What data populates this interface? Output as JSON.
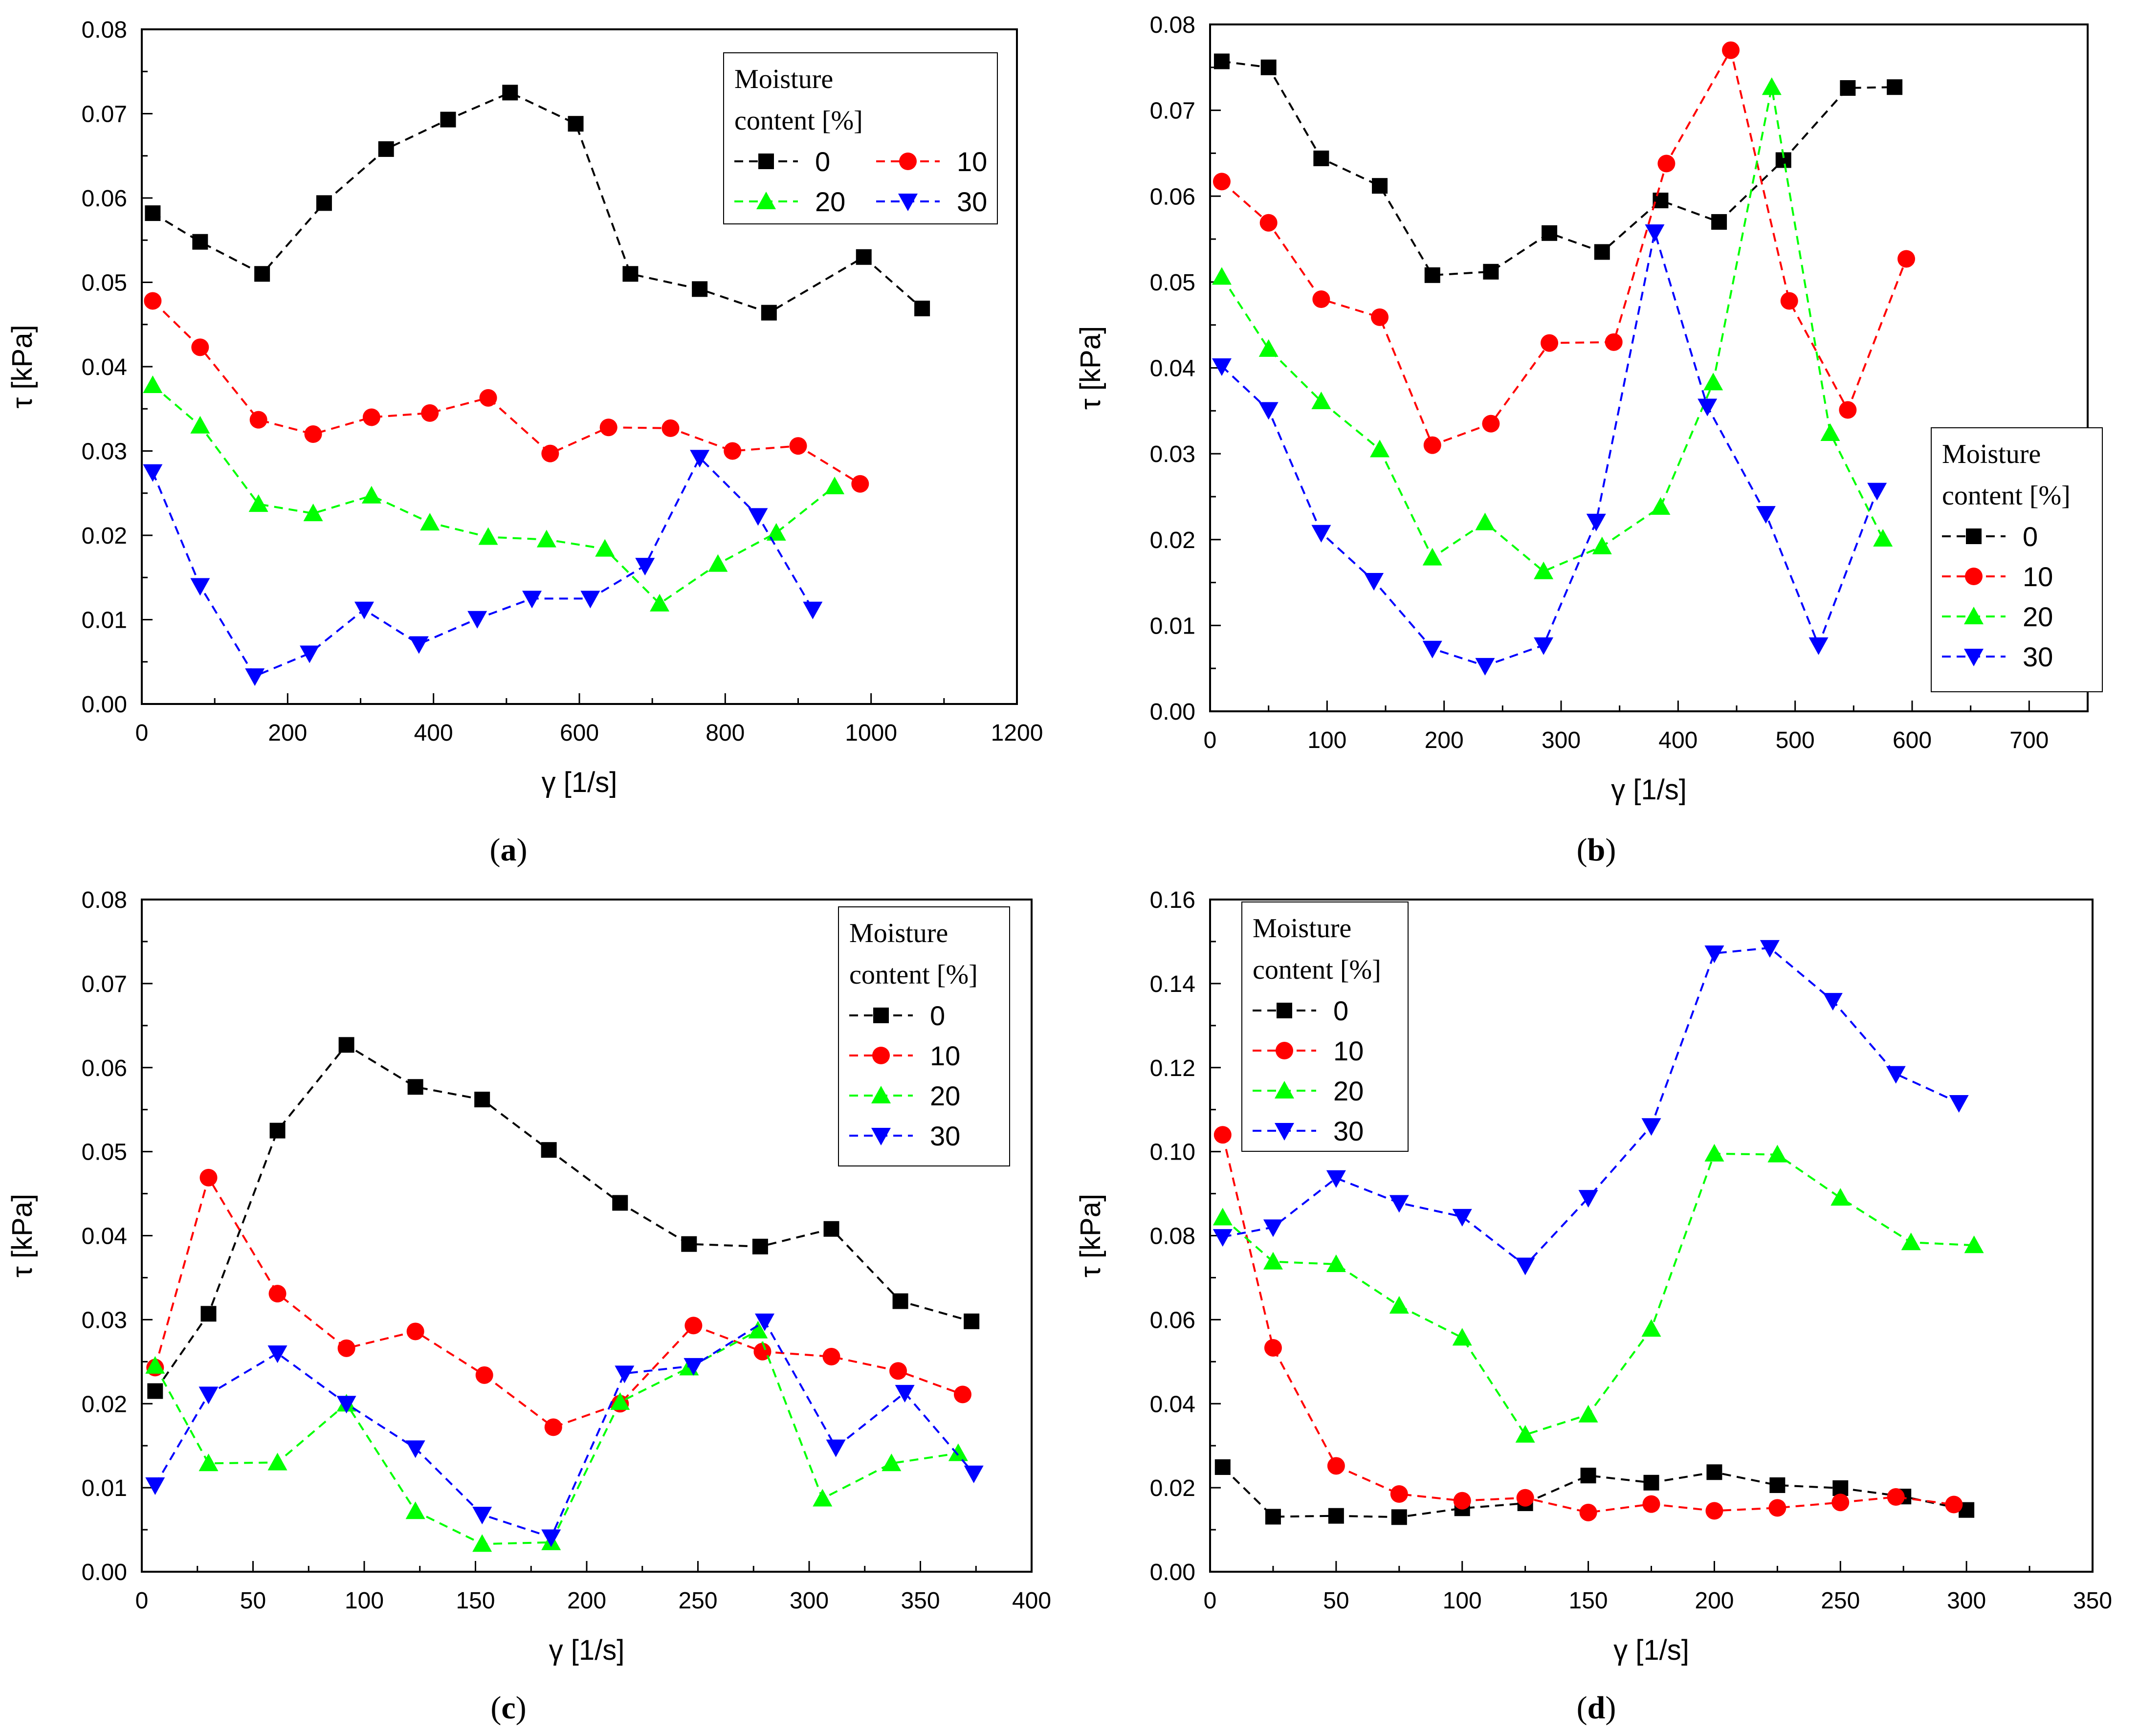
{
  "figure_caption_labels": [
    "a",
    "b",
    "c",
    "d"
  ],
  "chart_data": [
    {
      "type": "line",
      "panel": "a",
      "xlabel": "γ [1/s]",
      "ylabel": "τ [kPa]",
      "xlim": [
        0,
        1200
      ],
      "ylim": [
        0,
        0.08
      ],
      "xticks": [
        0,
        200,
        400,
        600,
        800,
        1000,
        1200
      ],
      "yticks": [
        0.0,
        0.01,
        0.02,
        0.03,
        0.04,
        0.05,
        0.06,
        0.07,
        0.08
      ],
      "legend_title": [
        "Moisture",
        "content [%]"
      ],
      "legend_position": "top-right",
      "legend_columns": 2,
      "series": [
        {
          "name": "0",
          "color": "#000000",
          "marker": "square",
          "x": [
            15,
            80,
            165,
            250,
            335,
            420,
            505,
            595,
            670,
            765,
            860,
            990,
            1070
          ],
          "y": [
            0.0582,
            0.0548,
            0.051,
            0.0594,
            0.0658,
            0.0693,
            0.0725,
            0.0688,
            0.051,
            0.0492,
            0.0464,
            0.053,
            0.0469
          ]
        },
        {
          "name": "10",
          "color": "#ff0000",
          "marker": "circle",
          "x": [
            15,
            80,
            160,
            235,
            315,
            395,
            475,
            560,
            640,
            725,
            810,
            900,
            985
          ],
          "y": [
            0.0478,
            0.0423,
            0.0337,
            0.032,
            0.034,
            0.0345,
            0.0363,
            0.0297,
            0.0328,
            0.0327,
            0.03,
            0.0306,
            0.0261
          ]
        },
        {
          "name": "20",
          "color": "#00ff00",
          "marker": "triangle-up",
          "x": [
            15,
            80,
            160,
            235,
            315,
            395,
            475,
            555,
            635,
            710,
            790,
            870,
            950
          ],
          "y": [
            0.0378,
            0.033,
            0.0237,
            0.0226,
            0.0247,
            0.0215,
            0.0198,
            0.0195,
            0.0184,
            0.0119,
            0.0166,
            0.0203,
            0.0258
          ]
        },
        {
          "name": "30",
          "color": "#0000ff",
          "marker": "triangle-down",
          "x": [
            15,
            80,
            155,
            230,
            305,
            380,
            460,
            535,
            615,
            690,
            765,
            845,
            920
          ],
          "y": [
            0.0275,
            0.014,
            0.0033,
            0.006,
            0.0112,
            0.0071,
            0.0101,
            0.0125,
            0.0125,
            0.0164,
            0.0292,
            0.0223,
            0.0112
          ]
        }
      ]
    },
    {
      "type": "line",
      "panel": "b",
      "xlabel": "γ [1/s]",
      "ylabel": "τ [kPa]",
      "xlim": [
        0,
        750
      ],
      "ylim": [
        0,
        0.08
      ],
      "xticks": [
        0,
        100,
        200,
        300,
        400,
        500,
        600,
        700
      ],
      "yticks": [
        0.0,
        0.01,
        0.02,
        0.03,
        0.04,
        0.05,
        0.06,
        0.07,
        0.08
      ],
      "legend_title": [
        "Moisture",
        "content [%]"
      ],
      "legend_position": "lower-right",
      "legend_columns": 1,
      "series": [
        {
          "name": "0",
          "color": "#000000",
          "marker": "square",
          "x": [
            10,
            50,
            95,
            145,
            190,
            240,
            290,
            335,
            385,
            435,
            490,
            545,
            585
          ],
          "y": [
            0.0757,
            0.075,
            0.0644,
            0.0612,
            0.0508,
            0.0512,
            0.0557,
            0.0535,
            0.0595,
            0.057,
            0.0642,
            0.0726,
            0.0727
          ]
        },
        {
          "name": "10",
          "color": "#ff0000",
          "marker": "circle",
          "x": [
            10,
            50,
            95,
            145,
            190,
            240,
            290,
            345,
            390,
            445,
            495,
            545,
            595
          ],
          "y": [
            0.0617,
            0.0569,
            0.048,
            0.0459,
            0.031,
            0.0335,
            0.0429,
            0.043,
            0.0638,
            0.077,
            0.0478,
            0.0351,
            0.0527
          ]
        },
        {
          "name": "20",
          "color": "#00ff00",
          "marker": "triangle-up",
          "x": [
            10,
            50,
            95,
            145,
            190,
            235,
            285,
            335,
            385,
            430,
            480,
            530,
            575
          ],
          "y": [
            0.0506,
            0.0422,
            0.0361,
            0.0305,
            0.0179,
            0.022,
            0.0163,
            0.0192,
            0.0238,
            0.0383,
            0.0727,
            0.0324,
            0.0201
          ]
        },
        {
          "name": "30",
          "color": "#0000ff",
          "marker": "triangle-down",
          "x": [
            10,
            50,
            95,
            140,
            190,
            235,
            285,
            330,
            380,
            425,
            475,
            520,
            570
          ],
          "y": [
            0.0402,
            0.0351,
            0.0208,
            0.0152,
            0.0073,
            0.0053,
            0.0077,
            0.0221,
            0.0558,
            0.0355,
            0.023,
            0.0077,
            0.0257
          ]
        }
      ]
    },
    {
      "type": "line",
      "panel": "c",
      "xlabel": "γ [1/s]",
      "ylabel": "τ [kPa]",
      "xlim": [
        0,
        400
      ],
      "ylim": [
        0,
        0.08
      ],
      "xticks": [
        0,
        50,
        100,
        150,
        200,
        250,
        300,
        350,
        400
      ],
      "yticks": [
        0.0,
        0.01,
        0.02,
        0.03,
        0.04,
        0.05,
        0.06,
        0.07,
        0.08
      ],
      "legend_title": [
        "Moisture",
        "content [%]"
      ],
      "legend_position": "top-right",
      "legend_columns": 1,
      "series": [
        {
          "name": "0",
          "color": "#000000",
          "marker": "square",
          "x": [
            6,
            30,
            61,
            92,
            123,
            153,
            183,
            215,
            246,
            278,
            310,
            341,
            373
          ],
          "y": [
            0.0215,
            0.0307,
            0.0525,
            0.0627,
            0.0577,
            0.0562,
            0.0502,
            0.0439,
            0.039,
            0.0387,
            0.0408,
            0.0322,
            0.0298
          ]
        },
        {
          "name": "10",
          "color": "#ff0000",
          "marker": "circle",
          "x": [
            6,
            30,
            61,
            92,
            123,
            154,
            185,
            215,
            248,
            279,
            310,
            340,
            369
          ],
          "y": [
            0.0243,
            0.0469,
            0.0331,
            0.0266,
            0.0286,
            0.0234,
            0.0172,
            0.02,
            0.0293,
            0.0262,
            0.0256,
            0.0239,
            0.0211
          ]
        },
        {
          "name": "20",
          "color": "#00ff00",
          "marker": "triangle-up",
          "x": [
            6,
            30,
            61,
            92,
            123,
            153,
            184,
            215,
            246,
            277,
            306,
            337,
            367
          ],
          "y": [
            0.0245,
            0.0129,
            0.013,
            0.02,
            0.0072,
            0.0033,
            0.0035,
            0.0202,
            0.0243,
            0.0287,
            0.0087,
            0.0129,
            0.0141
          ]
        },
        {
          "name": "30",
          "color": "#0000ff",
          "marker": "triangle-down",
          "x": [
            6,
            30,
            61,
            92,
            123,
            153,
            184,
            217,
            248,
            280,
            312,
            343,
            374
          ],
          "y": [
            0.0103,
            0.0211,
            0.026,
            0.02,
            0.0147,
            0.0068,
            0.0041,
            0.0236,
            0.0245,
            0.0298,
            0.0148,
            0.0213,
            0.0117
          ]
        }
      ]
    },
    {
      "type": "line",
      "panel": "d",
      "xlabel": "γ [1/s]",
      "ylabel": "τ [kPa]",
      "xlim": [
        0,
        350
      ],
      "ylim": [
        0,
        0.16
      ],
      "xticks": [
        0,
        50,
        100,
        150,
        200,
        250,
        300,
        350
      ],
      "yticks": [
        0.0,
        0.02,
        0.04,
        0.06,
        0.08,
        0.1,
        0.12,
        0.14,
        0.16
      ],
      "legend_title": [
        "Moisture",
        "content [%]"
      ],
      "legend_position": "top-left",
      "legend_columns": 1,
      "series": [
        {
          "name": "0",
          "color": "#000000",
          "marker": "square",
          "x": [
            5,
            25,
            50,
            75,
            100,
            125,
            150,
            175,
            200,
            225,
            250,
            275,
            300
          ],
          "y": [
            0.0249,
            0.0131,
            0.0133,
            0.013,
            0.0151,
            0.0163,
            0.0229,
            0.0212,
            0.0237,
            0.0206,
            0.0199,
            0.0179,
            0.0147
          ]
        },
        {
          "name": "10",
          "color": "#ff0000",
          "marker": "circle",
          "x": [
            5,
            25,
            50,
            75,
            100,
            125,
            150,
            175,
            200,
            225,
            250,
            272,
            295
          ],
          "y": [
            0.104,
            0.0533,
            0.0252,
            0.0185,
            0.0169,
            0.0176,
            0.0141,
            0.0161,
            0.0145,
            0.0152,
            0.0165,
            0.0178,
            0.016
          ]
        },
        {
          "name": "20",
          "color": "#00ff00",
          "marker": "triangle-up",
          "x": [
            5,
            25,
            50,
            75,
            100,
            125,
            150,
            175,
            200,
            225,
            250,
            278,
            303
          ],
          "y": [
            0.0843,
            0.0738,
            0.0732,
            0.0633,
            0.0557,
            0.0326,
            0.0374,
            0.0578,
            0.0995,
            0.0993,
            0.089,
            0.0784,
            0.0777
          ]
        },
        {
          "name": "30",
          "color": "#0000ff",
          "marker": "triangle-down",
          "x": [
            5,
            25,
            50,
            75,
            100,
            125,
            150,
            175,
            200,
            222,
            247,
            272,
            297
          ],
          "y": [
            0.0797,
            0.082,
            0.0937,
            0.0878,
            0.0845,
            0.0729,
            0.089,
            0.1061,
            0.1472,
            0.1485,
            0.1359,
            0.1185,
            0.1116
          ]
        }
      ]
    }
  ]
}
